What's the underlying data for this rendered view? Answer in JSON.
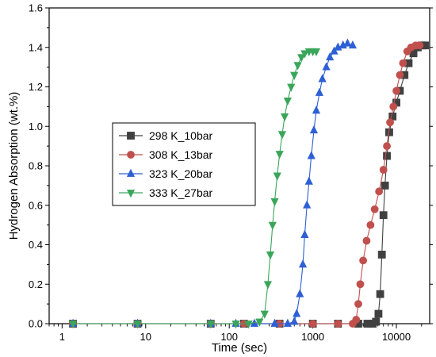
{
  "chart_data": {
    "type": "scatter",
    "title": "",
    "xlabel": "Time (sec)",
    "ylabel": "Hydrogen Absorption (wt.%)",
    "xscale": "log",
    "xlim": [
      0.7,
      25000
    ],
    "ylim": [
      0,
      1.6
    ],
    "x_ticks": [
      {
        "value": 1,
        "label": "1"
      },
      {
        "value": 10,
        "label": "10"
      },
      {
        "value": 100,
        "label": "100"
      },
      {
        "value": 1000,
        "label": "1000"
      },
      {
        "value": 10000,
        "label": "10000"
      }
    ],
    "y_ticks": [
      {
        "value": 0.0,
        "label": "0.0"
      },
      {
        "value": 0.2,
        "label": "0.2"
      },
      {
        "value": 0.4,
        "label": "0.4"
      },
      {
        "value": 0.6,
        "label": "0.6"
      },
      {
        "value": 0.8,
        "label": "0.8"
      },
      {
        "value": 1.0,
        "label": "1.0"
      },
      {
        "value": 1.2,
        "label": "1.2"
      },
      {
        "value": 1.4,
        "label": "1.4"
      },
      {
        "value": 1.6,
        "label": "1.6"
      }
    ],
    "grid": false,
    "legend_position": "center-left",
    "series": [
      {
        "name": "298 K_10bar",
        "color": "#404040",
        "marker": "square",
        "points": [
          [
            1.35,
            0
          ],
          [
            8,
            0
          ],
          [
            60,
            0
          ],
          [
            150,
            0
          ],
          [
            400,
            0
          ],
          [
            1000,
            0
          ],
          [
            2000,
            0
          ],
          [
            3500,
            0
          ],
          [
            4500,
            0
          ],
          [
            5200,
            0
          ],
          [
            5700,
            0.01
          ],
          [
            6100,
            0.05
          ],
          [
            6400,
            0.15
          ],
          [
            6700,
            0.35
          ],
          [
            7000,
            0.55
          ],
          [
            7300,
            0.7
          ],
          [
            7700,
            0.85
          ],
          [
            8200,
            0.97
          ],
          [
            9000,
            1.05
          ],
          [
            10000,
            1.12
          ],
          [
            11000,
            1.18
          ],
          [
            12500,
            1.26
          ],
          [
            14000,
            1.32
          ],
          [
            16000,
            1.37
          ],
          [
            18000,
            1.4
          ],
          [
            20000,
            1.41
          ],
          [
            22000,
            1.41
          ]
        ]
      },
      {
        "name": "308 K_13bar",
        "color": "#c0504d",
        "marker": "circle",
        "points": [
          [
            1.35,
            0
          ],
          [
            8,
            0
          ],
          [
            60,
            0
          ],
          [
            150,
            0
          ],
          [
            400,
            0
          ],
          [
            1000,
            0
          ],
          [
            2000,
            0
          ],
          [
            3000,
            0
          ],
          [
            3300,
            0.02
          ],
          [
            3500,
            0.1
          ],
          [
            3700,
            0.2
          ],
          [
            4000,
            0.32
          ],
          [
            4400,
            0.42
          ],
          [
            4900,
            0.5
          ],
          [
            5500,
            0.58
          ],
          [
            6200,
            0.67
          ],
          [
            7000,
            0.78
          ],
          [
            7700,
            0.9
          ],
          [
            8400,
            1.02
          ],
          [
            9200,
            1.1
          ],
          [
            10000,
            1.18
          ],
          [
            11000,
            1.26
          ],
          [
            12000,
            1.32
          ],
          [
            13500,
            1.38
          ],
          [
            15000,
            1.4
          ],
          [
            17000,
            1.41
          ],
          [
            19000,
            1.41
          ]
        ]
      },
      {
        "name": "323 K_20bar",
        "color": "#2e5fd4",
        "marker": "triangle-up",
        "points": [
          [
            1.35,
            0
          ],
          [
            8,
            0
          ],
          [
            60,
            0
          ],
          [
            120,
            0
          ],
          [
            200,
            0
          ],
          [
            350,
            0
          ],
          [
            500,
            0
          ],
          [
            600,
            0.01
          ],
          [
            640,
            0.05
          ],
          [
            700,
            0.15
          ],
          [
            760,
            0.3
          ],
          [
            800,
            0.45
          ],
          [
            850,
            0.6
          ],
          [
            900,
            0.72
          ],
          [
            960,
            0.85
          ],
          [
            1030,
            0.98
          ],
          [
            1100,
            1.08
          ],
          [
            1200,
            1.17
          ],
          [
            1300,
            1.24
          ],
          [
            1450,
            1.3
          ],
          [
            1600,
            1.35
          ],
          [
            1800,
            1.38
          ],
          [
            2000,
            1.4
          ],
          [
            2300,
            1.41
          ],
          [
            2600,
            1.42
          ],
          [
            3000,
            1.41
          ]
        ]
      },
      {
        "name": "333 K_27bar",
        "color": "#3aa65a",
        "marker": "triangle-down",
        "points": [
          [
            1.35,
            0
          ],
          [
            8,
            0
          ],
          [
            60,
            0
          ],
          [
            120,
            0
          ],
          [
            170,
            0
          ],
          [
            230,
            0.01
          ],
          [
            265,
            0.05
          ],
          [
            290,
            0.2
          ],
          [
            310,
            0.35
          ],
          [
            330,
            0.5
          ],
          [
            350,
            0.62
          ],
          [
            375,
            0.75
          ],
          [
            400,
            0.86
          ],
          [
            430,
            0.96
          ],
          [
            460,
            1.05
          ],
          [
            500,
            1.13
          ],
          [
            550,
            1.2
          ],
          [
            600,
            1.26
          ],
          [
            660,
            1.31
          ],
          [
            730,
            1.35
          ],
          [
            800,
            1.37
          ],
          [
            900,
            1.38
          ],
          [
            1000,
            1.38
          ],
          [
            1100,
            1.38
          ]
        ]
      }
    ]
  }
}
